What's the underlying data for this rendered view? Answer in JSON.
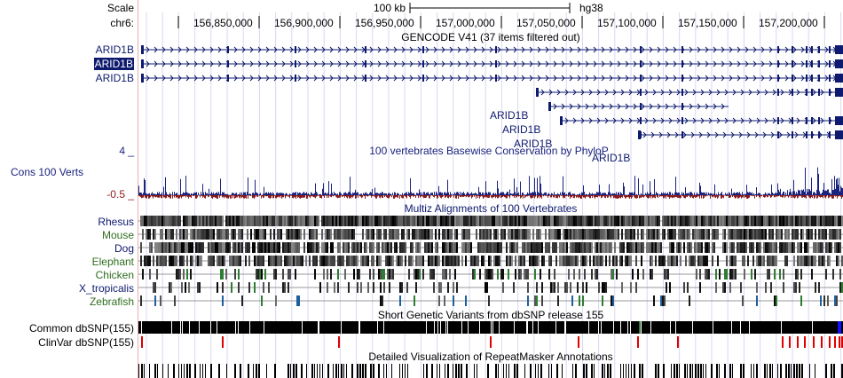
{
  "header": {
    "scale_label": "Scale",
    "scale_text": "100 kb",
    "assembly": "hg38",
    "chrom_label": "chr6:",
    "ruler_ticks": [
      "156,850,000",
      "156,900,000",
      "156,950,000",
      "157,000,000",
      "157,050,000",
      "157,100,000",
      "157,150,000",
      "157,200,000"
    ]
  },
  "tracks": {
    "gencode": {
      "title": "GENCODE V41 (37 items filtered out)",
      "transcripts": [
        {
          "name": "ARID1B",
          "highlighted": false
        },
        {
          "name": "ARID1B",
          "highlighted": true
        },
        {
          "name": "ARID1B",
          "highlighted": false
        },
        {
          "name": "ARID1B",
          "highlighted": false
        },
        {
          "name": "ARID1B",
          "highlighted": false
        },
        {
          "name": "ARID1B",
          "highlighted": false
        },
        {
          "name": "ARID1B",
          "highlighted": false
        }
      ]
    },
    "conservation": {
      "title": "100 vertebrates Basewise Conservation by PhyloP",
      "label": "Cons 100 Verts",
      "max_label": "4 _",
      "min_label": "-0.5 _"
    },
    "multiz": {
      "title": "Multiz Alignments of 100 Vertebrates",
      "species": [
        "Rhesus",
        "Mouse",
        "Dog",
        "Elephant",
        "Chicken",
        "X_tropicalis",
        "Zebrafish"
      ]
    },
    "dbsnp": {
      "title": "Short Genetic Variants from dbSNP release 155",
      "rows": [
        "Common dbSNP(155)",
        "ClinVar dbSNP(155)"
      ]
    },
    "repeatmasker": {
      "title": "Detailed Visualization of RepeatMasker Annotations"
    }
  },
  "colors": {
    "gene": "#0e1a6e",
    "cons_pos": "#1a237e",
    "cons_neg": "#8b1a1a",
    "species_primate": "#0e1a6e",
    "species_other": "#2e6e1e",
    "clinvar": "#e00000",
    "grid": "#d8d8f0"
  }
}
